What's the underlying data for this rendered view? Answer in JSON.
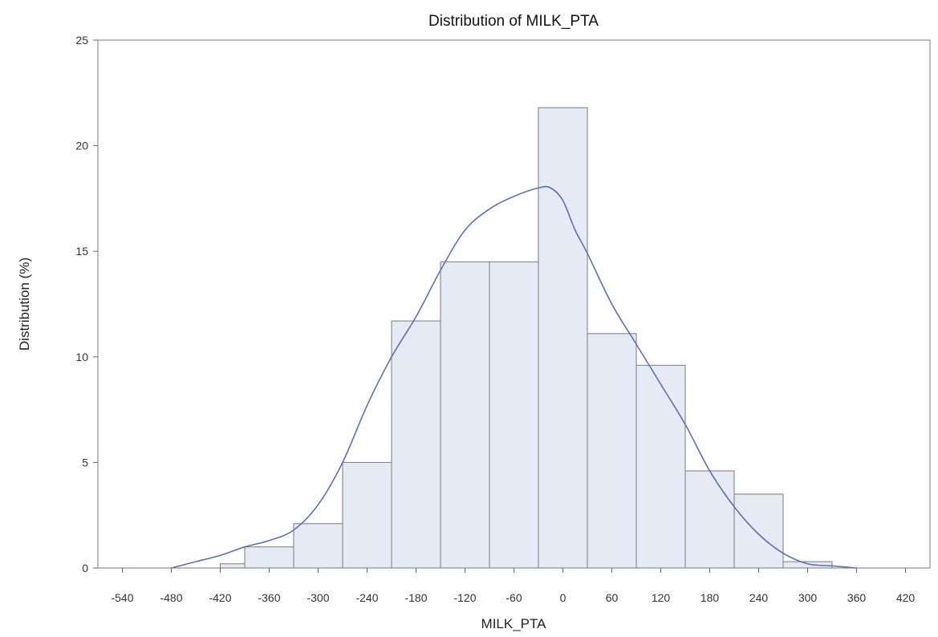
{
  "chart_data": {
    "type": "bar",
    "subtype": "histogram-with-density",
    "title": "Distribution of MILK_PTA",
    "xlabel": "MILK_PTA",
    "ylabel": "Distribution (%)",
    "xlim": [
      -570,
      450
    ],
    "ylim": [
      0,
      25
    ],
    "x_ticks": [
      -540,
      -480,
      -420,
      -360,
      -300,
      -240,
      -180,
      -120,
      -60,
      0,
      60,
      120,
      180,
      240,
      300,
      360,
      420
    ],
    "y_ticks": [
      0,
      5,
      10,
      15,
      20,
      25
    ],
    "bins": [
      {
        "x0": -420,
        "x1": -390,
        "value": 0.2
      },
      {
        "x0": -390,
        "x1": -330,
        "value": 1.0
      },
      {
        "x0": -330,
        "x1": -270,
        "value": 2.1
      },
      {
        "x0": -270,
        "x1": -210,
        "value": 5.0
      },
      {
        "x0": -210,
        "x1": -150,
        "value": 11.7
      },
      {
        "x0": -150,
        "x1": -90,
        "value": 14.5
      },
      {
        "x0": -90,
        "x1": -30,
        "value": 14.5
      },
      {
        "x0": -30,
        "x1": 30,
        "value": 21.8
      },
      {
        "x0": 30,
        "x1": 90,
        "value": 11.1
      },
      {
        "x0": 90,
        "x1": 150,
        "value": 9.6
      },
      {
        "x0": 150,
        "x1": 210,
        "value": 4.6
      },
      {
        "x0": 210,
        "x1": 270,
        "value": 3.5
      },
      {
        "x0": 270,
        "x1": 330,
        "value": 0.3
      }
    ],
    "density_curve": {
      "x": [
        -480,
        -450,
        -420,
        -390,
        -360,
        -330,
        -300,
        -270,
        -240,
        -210,
        -180,
        -150,
        -120,
        -90,
        -60,
        -30,
        -15,
        0,
        15,
        30,
        60,
        90,
        120,
        150,
        180,
        210,
        240,
        270,
        300,
        330,
        360
      ],
      "y": [
        0.0,
        0.3,
        0.6,
        1.0,
        1.3,
        1.8,
        3.0,
        5.0,
        7.7,
        10.0,
        11.9,
        14.1,
        16.0,
        17.0,
        17.6,
        18.0,
        18.0,
        17.4,
        16.0,
        14.9,
        12.5,
        10.6,
        8.7,
        6.8,
        4.6,
        2.9,
        1.6,
        0.7,
        0.2,
        0.1,
        0.0
      ]
    },
    "colors": {
      "bar_fill": "#e6eaf5",
      "bar_stroke": "#7a7a7a",
      "curve": "#5a72b5",
      "axis": "#666666",
      "frame": "#7a7a7a"
    },
    "grid": false,
    "legend": "none"
  }
}
